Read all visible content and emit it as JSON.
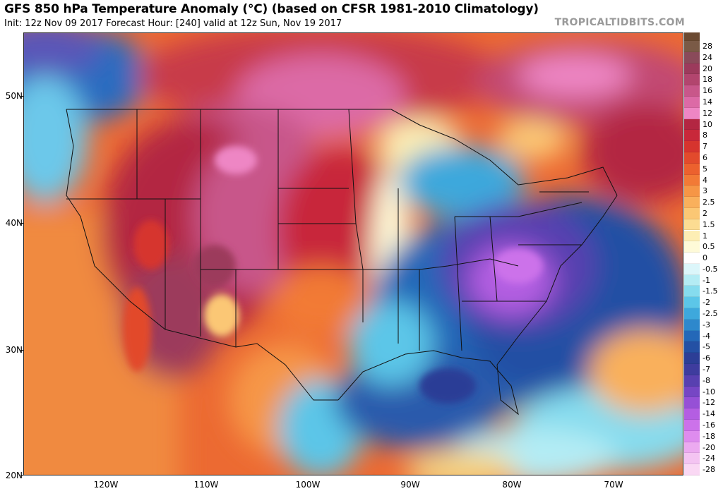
{
  "header": {
    "title": "GFS 850 hPa Temperature Anomaly (°C) (based on CFSR 1981-2010 Climatology)",
    "subtitle": "Init: 12z Nov 09 2017   Forecast Hour: [240]   valid at 12z Sun, Nov 19 2017",
    "brand": "TROPICALTIDBITS.COM"
  },
  "axes": {
    "lat_labels": [
      "50N",
      "40N",
      "30N",
      "20N"
    ],
    "lon_labels": [
      "120W",
      "110W",
      "100W",
      "90W",
      "80W",
      "70W"
    ]
  },
  "legend": {
    "top_color": "#6b4a32",
    "items": [
      {
        "label": "28",
        "color": "#7a5a46"
      },
      {
        "label": "24",
        "color": "#8a4a5a"
      },
      {
        "label": "20",
        "color": "#9c3a5c"
      },
      {
        "label": "18",
        "color": "#b2456e"
      },
      {
        "label": "16",
        "color": "#c8578a"
      },
      {
        "label": "14",
        "color": "#dc6aa6"
      },
      {
        "label": "12",
        "color": "#ee86c4"
      },
      {
        "label": "10",
        "color": "#b32642"
      },
      {
        "label": "8",
        "color": "#c8283a"
      },
      {
        "label": "7",
        "color": "#d6342e"
      },
      {
        "label": "6",
        "color": "#e24a2c"
      },
      {
        "label": "5",
        "color": "#ec612e"
      },
      {
        "label": "4",
        "color": "#f27a36"
      },
      {
        "label": "3",
        "color": "#f69646"
      },
      {
        "label": "2.5",
        "color": "#f9b05c"
      },
      {
        "label": "2",
        "color": "#fbc774"
      },
      {
        "label": "1.5",
        "color": "#fcdc92"
      },
      {
        "label": "1",
        "color": "#fdeeb4"
      },
      {
        "label": "0.5",
        "color": "#fefad8"
      },
      {
        "label": "0",
        "color": "#ffffff"
      },
      {
        "label": "-0.5",
        "color": "#dcf6fa"
      },
      {
        "label": "-1",
        "color": "#b4ecf4"
      },
      {
        "label": "-1.5",
        "color": "#86dcee"
      },
      {
        "label": "-2",
        "color": "#5cc6e8"
      },
      {
        "label": "-2.5",
        "color": "#3ea8dc"
      },
      {
        "label": "-3",
        "color": "#2e88cc"
      },
      {
        "label": "-4",
        "color": "#2468b8"
      },
      {
        "label": "-5",
        "color": "#2450a4"
      },
      {
        "label": "-6",
        "color": "#2c3e96"
      },
      {
        "label": "-7",
        "color": "#3e3c9e"
      },
      {
        "label": "-8",
        "color": "#5840b0"
      },
      {
        "label": "-10",
        "color": "#7646c4"
      },
      {
        "label": "-12",
        "color": "#9650d6"
      },
      {
        "label": "-14",
        "color": "#b45ee2"
      },
      {
        "label": "-16",
        "color": "#cc72ea"
      },
      {
        "label": "-18",
        "color": "#de8cee"
      },
      {
        "label": "-20",
        "color": "#ecaaf0"
      },
      {
        "label": "-24",
        "color": "#f4c4f2"
      },
      {
        "label": "-28",
        "color": "#fad8f4"
      }
    ]
  }
}
